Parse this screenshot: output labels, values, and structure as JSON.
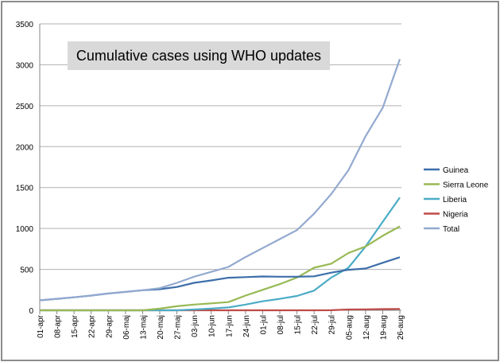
{
  "chart_data": {
    "type": "line",
    "title": "Cumulative cases using WHO updates",
    "xlabel": "",
    "ylabel": "",
    "ylim": [
      0,
      3500
    ],
    "yticks": [
      0,
      500,
      1000,
      1500,
      2000,
      2500,
      3000,
      3500
    ],
    "grid": true,
    "legend_position": "right",
    "categories": [
      "01-apr",
      "08-apr",
      "15-apr",
      "22-apr",
      "29-apr",
      "06-maj",
      "13-maj",
      "20-maj",
      "27-maj",
      "03-jun",
      "10-jun",
      "17-jun",
      "24-jun",
      "01-jul",
      "08-jul",
      "15-jul",
      "22-jul",
      "29-jul",
      "05-aug",
      "12-aug",
      "19-aug",
      "26-aug"
    ],
    "series": [
      {
        "name": "Guinea",
        "color": "#3e6eaa",
        "values": [
          122,
          140,
          158,
          180,
          205,
          225,
          245,
          258,
          285,
          335,
          365,
          398,
          405,
          413,
          410,
          410,
          415,
          460,
          495,
          510,
          580,
          648
        ]
      },
      {
        "name": "Sierra Leone",
        "color": "#98b954",
        "values": [
          0,
          0,
          0,
          0,
          0,
          0,
          0,
          20,
          50,
          70,
          85,
          100,
          180,
          250,
          320,
          400,
          520,
          570,
          700,
          780,
          910,
          1026
        ]
      },
      {
        "name": "Liberia",
        "color": "#4bacc6",
        "values": [
          0,
          0,
          0,
          0,
          0,
          0,
          0,
          0,
          0,
          10,
          20,
          35,
          70,
          110,
          140,
          175,
          240,
          400,
          520,
          780,
          1080,
          1378
        ]
      },
      {
        "name": "Nigeria",
        "color": "#be4b48",
        "values": [
          0,
          0,
          0,
          0,
          0,
          0,
          0,
          0,
          0,
          0,
          0,
          0,
          0,
          0,
          0,
          0,
          0,
          1,
          10,
          12,
          15,
          17
        ]
      },
      {
        "name": "Total",
        "color": "#93a9cf",
        "values": [
          122,
          140,
          158,
          180,
          205,
          225,
          245,
          270,
          335,
          410,
          470,
          530,
          650,
          760,
          870,
          980,
          1180,
          1420,
          1711,
          2127,
          2473,
          3069
        ]
      }
    ]
  }
}
